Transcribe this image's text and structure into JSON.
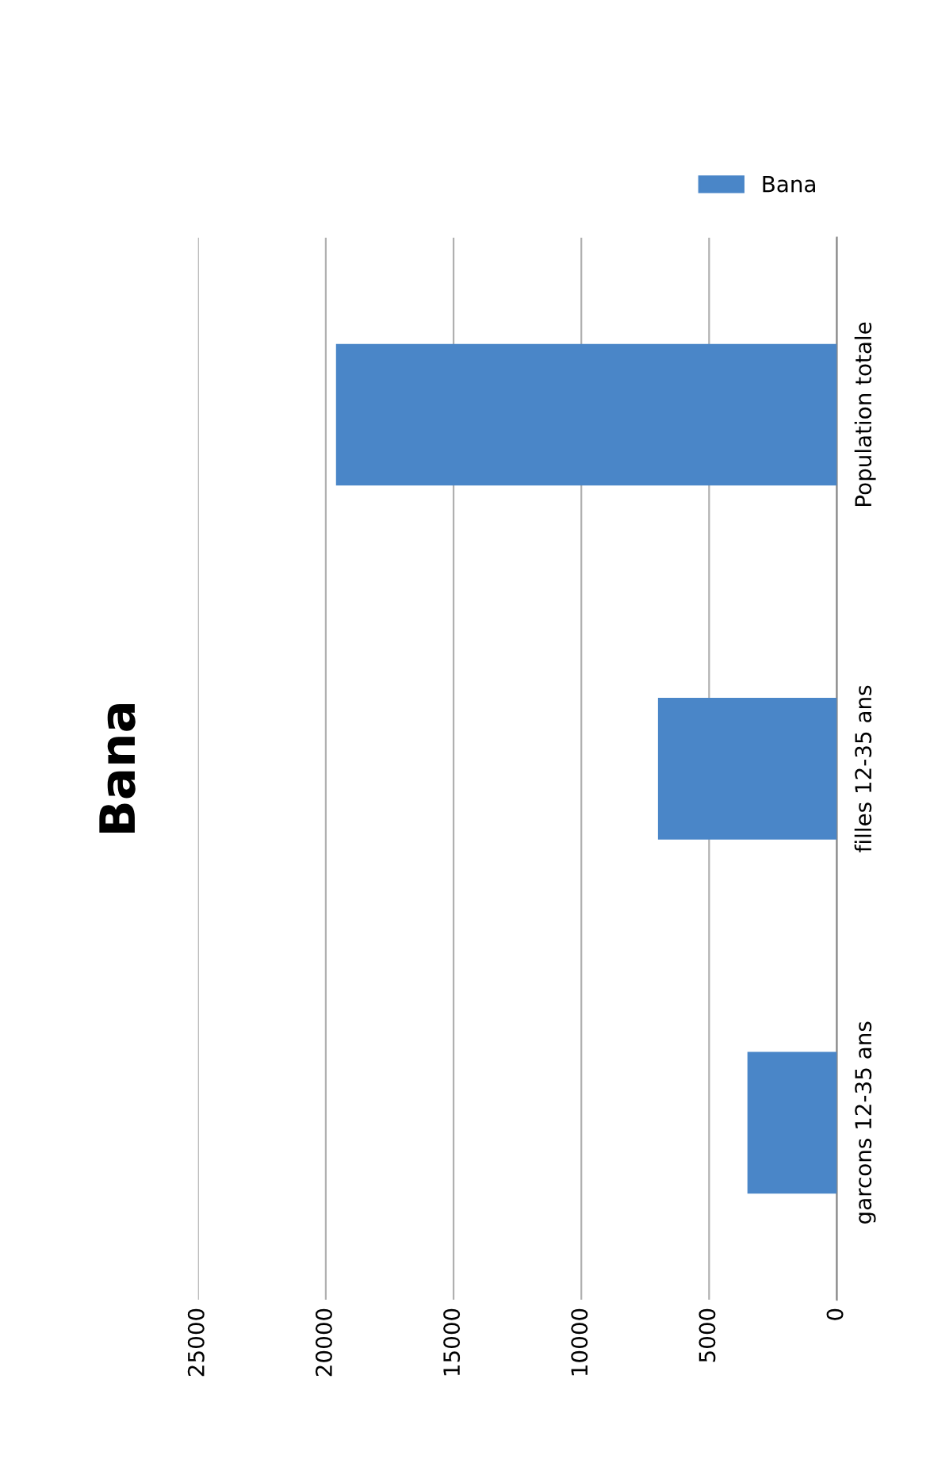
{
  "chart_data": {
    "type": "bar",
    "title": "Bana",
    "orientation": "horizontal",
    "categories": [
      "Population totale",
      "filles 12-35 ans",
      "garcons 12-35 ans"
    ],
    "series": [
      {
        "name": "Bana",
        "color": "#4a86c8",
        "values": [
          19600,
          7000,
          3500
        ]
      }
    ],
    "xlim": [
      25000,
      0
    ],
    "xticks": [
      0,
      5000,
      10000,
      15000,
      20000,
      25000
    ],
    "grid": "x",
    "legend": "top right"
  }
}
